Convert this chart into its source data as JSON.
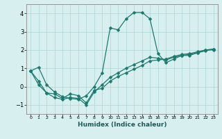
{
  "x": [
    0,
    1,
    2,
    3,
    4,
    5,
    6,
    7,
    8,
    9,
    10,
    11,
    12,
    13,
    14,
    15,
    16,
    17,
    18,
    19,
    20,
    21,
    22,
    23
  ],
  "y_main": [
    0.85,
    1.05,
    0.1,
    -0.3,
    -0.55,
    -0.65,
    -0.7,
    -0.5,
    0.0,
    0.75,
    3.2,
    3.1,
    3.7,
    4.05,
    4.05,
    3.7,
    1.8,
    1.3,
    1.5,
    1.7,
    1.7,
    1.85,
    2.0,
    2.0
  ],
  "y_line1": [
    0.85,
    0.3,
    -0.35,
    -0.4,
    -0.65,
    -0.4,
    -0.5,
    -0.9,
    -0.2,
    -0.1,
    0.3,
    0.55,
    0.75,
    0.95,
    1.15,
    1.4,
    1.45,
    1.5,
    1.65,
    1.75,
    1.8,
    1.9,
    2.0,
    2.05
  ],
  "y_line2": [
    0.85,
    0.1,
    -0.35,
    -0.6,
    -0.7,
    -0.6,
    -0.65,
    -1.0,
    -0.3,
    0.1,
    0.5,
    0.75,
    1.0,
    1.2,
    1.4,
    1.6,
    1.55,
    1.45,
    1.6,
    1.7,
    1.75,
    1.85,
    1.95,
    2.05
  ],
  "ylim": [
    -1.5,
    4.5
  ],
  "xlim": [
    -0.5,
    23.5
  ],
  "yticks": [
    -1,
    0,
    1,
    2,
    3,
    4
  ],
  "xtick_labels": [
    "0",
    "1",
    "2",
    "3",
    "4",
    "5",
    "6",
    "7",
    "8",
    "9",
    "10",
    "11",
    "12",
    "13",
    "14",
    "15",
    "16",
    "17",
    "18",
    "19",
    "20",
    "21",
    "22",
    "23"
  ],
  "xlabel": "Humidex (Indice chaleur)",
  "line_color": "#1a7a6e",
  "bg_color": "#d8eff0",
  "grid_color": "#afd4d6",
  "markersize": 2.5,
  "linewidth": 0.9
}
